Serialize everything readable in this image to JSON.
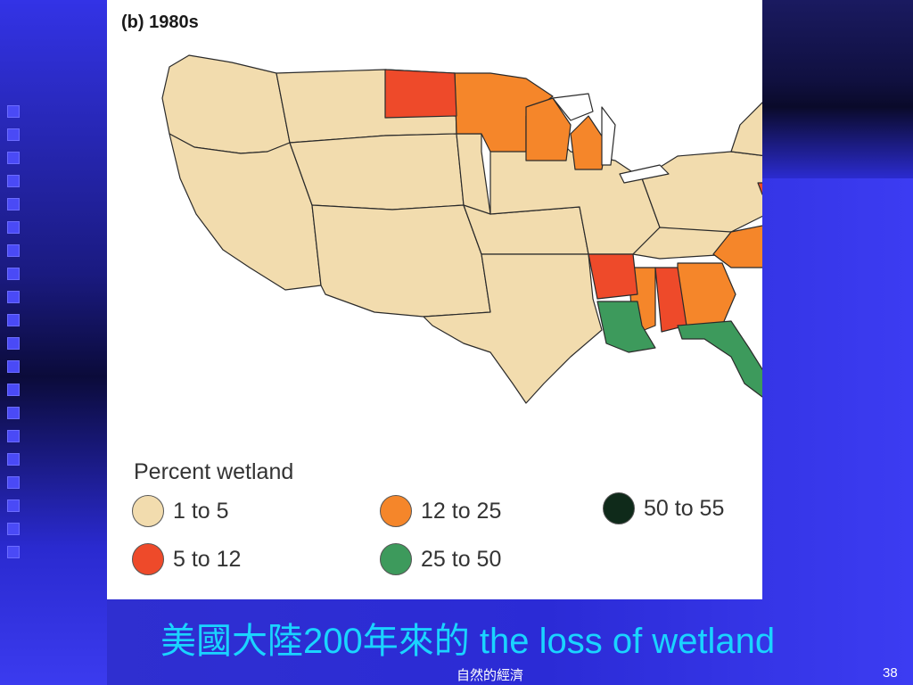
{
  "figure": {
    "label": "(b) 1980s",
    "legend": {
      "title": "Percent wetland",
      "items": [
        {
          "label": "1 to 5",
          "color": "#f2dcae"
        },
        {
          "label": "5 to 12",
          "color": "#ee4a2a"
        },
        {
          "label": "12 to 25",
          "color": "#f5862a"
        },
        {
          "label": "25 to 50",
          "color": "#3d9a5c"
        },
        {
          "label": "50 to 55",
          "color": "#0f2a1a"
        }
      ]
    },
    "colors": {
      "land": "#f2dcae",
      "red": "#ee4a2a",
      "orange": "#f5862a",
      "green": "#3d9a5c",
      "border": "#2a2a2a"
    }
  },
  "caption": {
    "cjk_prefix": "美國大陸",
    "number": "200",
    "cjk_mid": "年來的",
    "english": " the loss of wetland"
  },
  "footer": {
    "center": "自然的經濟",
    "page": "38"
  }
}
